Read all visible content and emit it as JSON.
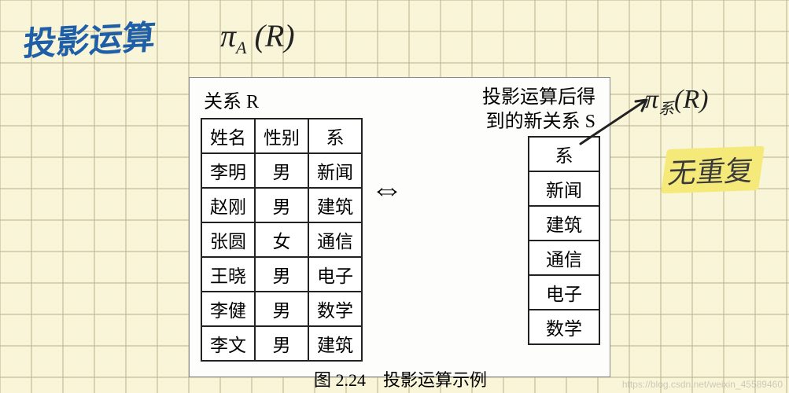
{
  "grid": {
    "bg_color": "#f8f5d8",
    "line_color": "#b8b08a",
    "cell": 40
  },
  "annotations": {
    "title": {
      "text": "投影运算",
      "color": "#1e5fa8"
    },
    "formula": {
      "text": "π",
      "sub": "A",
      "rest": " (R)",
      "color": "#222"
    },
    "formula2": {
      "pi": "π",
      "sub": "系",
      "rest": "(R)",
      "color": "#222"
    },
    "note": {
      "text": "无重复",
      "color": "#3a3a3a",
      "highlight": "#f5e97a"
    },
    "arrow": {
      "color": "#222"
    }
  },
  "figure": {
    "relation_r_label": "关系 R",
    "relation_s_label_line1": "投影运算后得",
    "relation_s_label_line2": "到的新关系 S",
    "bidir_arrow": "⇔",
    "r": {
      "columns": [
        "姓名",
        "性别",
        "系"
      ],
      "rows": [
        [
          "李明",
          "男",
          "新闻"
        ],
        [
          "赵刚",
          "男",
          "建筑"
        ],
        [
          "张圆",
          "女",
          "通信"
        ],
        [
          "王晓",
          "男",
          "电子"
        ],
        [
          "李健",
          "男",
          "数学"
        ],
        [
          "李文",
          "男",
          "建筑"
        ]
      ]
    },
    "s": {
      "column": "系",
      "rows": [
        "新闻",
        "建筑",
        "通信",
        "电子",
        "数学"
      ]
    },
    "caption": "图 2.24　投影运算示例"
  },
  "watermark": "https://blog.csdn.net/weixin_45589460"
}
